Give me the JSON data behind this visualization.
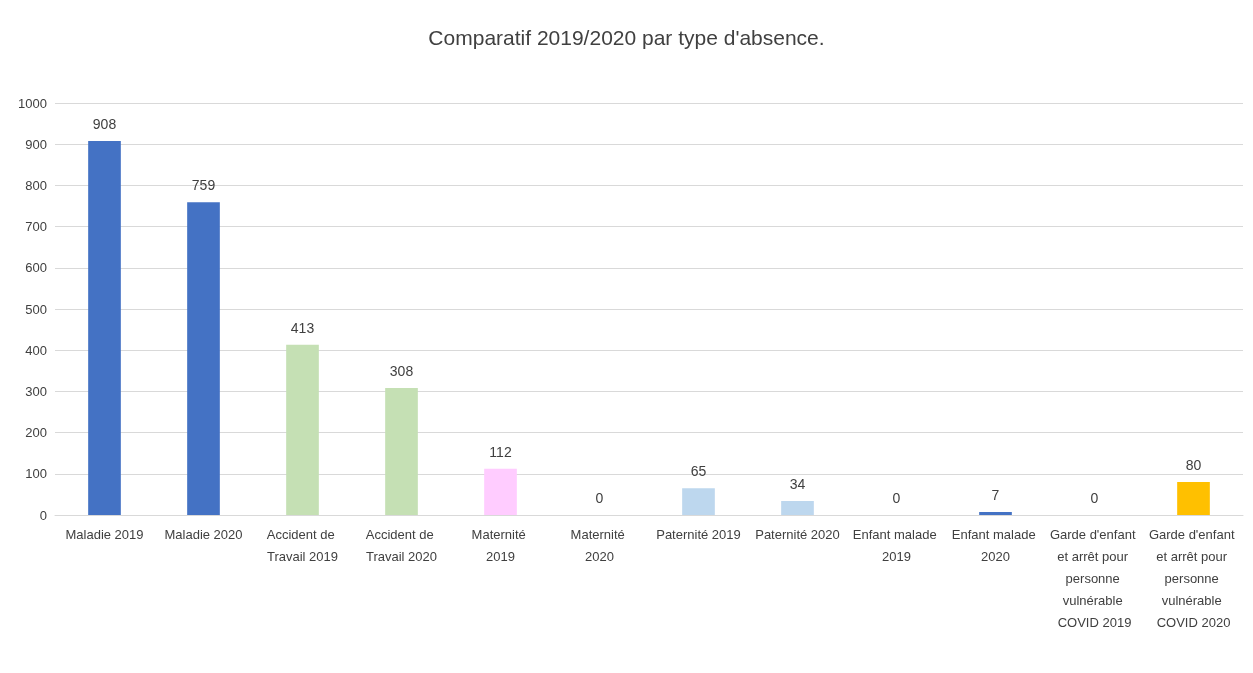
{
  "chart_data": {
    "type": "bar",
    "title": "Comparatif 2019/2020 par type d'absence.",
    "categories": [
      "Maladie 2019",
      "Maladie 2020",
      "Accident de Travail 2019",
      "Accident de Travail 2020",
      "Maternité 2019",
      "Maternité 2020",
      "Paternité 2019",
      "Paternité 2020",
      "Enfant malade 2019",
      "Enfant malade 2020",
      "Garde d'enfant et arrêt pour personne vulnérable COVID 2019",
      "Garde d'enfant et arrêt pour personne vulnérable COVID 2020"
    ],
    "values": [
      908,
      759,
      413,
      308,
      112,
      0,
      65,
      34,
      0,
      7,
      0,
      80
    ],
    "colors": [
      "#4472c4",
      "#4472c4",
      "#c5e0b4",
      "#c5e0b4",
      "#ffccff",
      "#ffccff",
      "#bdd7ee",
      "#bdd7ee",
      "#4472c4",
      "#4472c4",
      "#ffc000",
      "#ffc000"
    ],
    "ylim": [
      0,
      1000
    ],
    "yticks": [
      0,
      100,
      200,
      300,
      400,
      500,
      600,
      700,
      800,
      900,
      1000
    ],
    "grid": "y",
    "data_labels": true
  }
}
